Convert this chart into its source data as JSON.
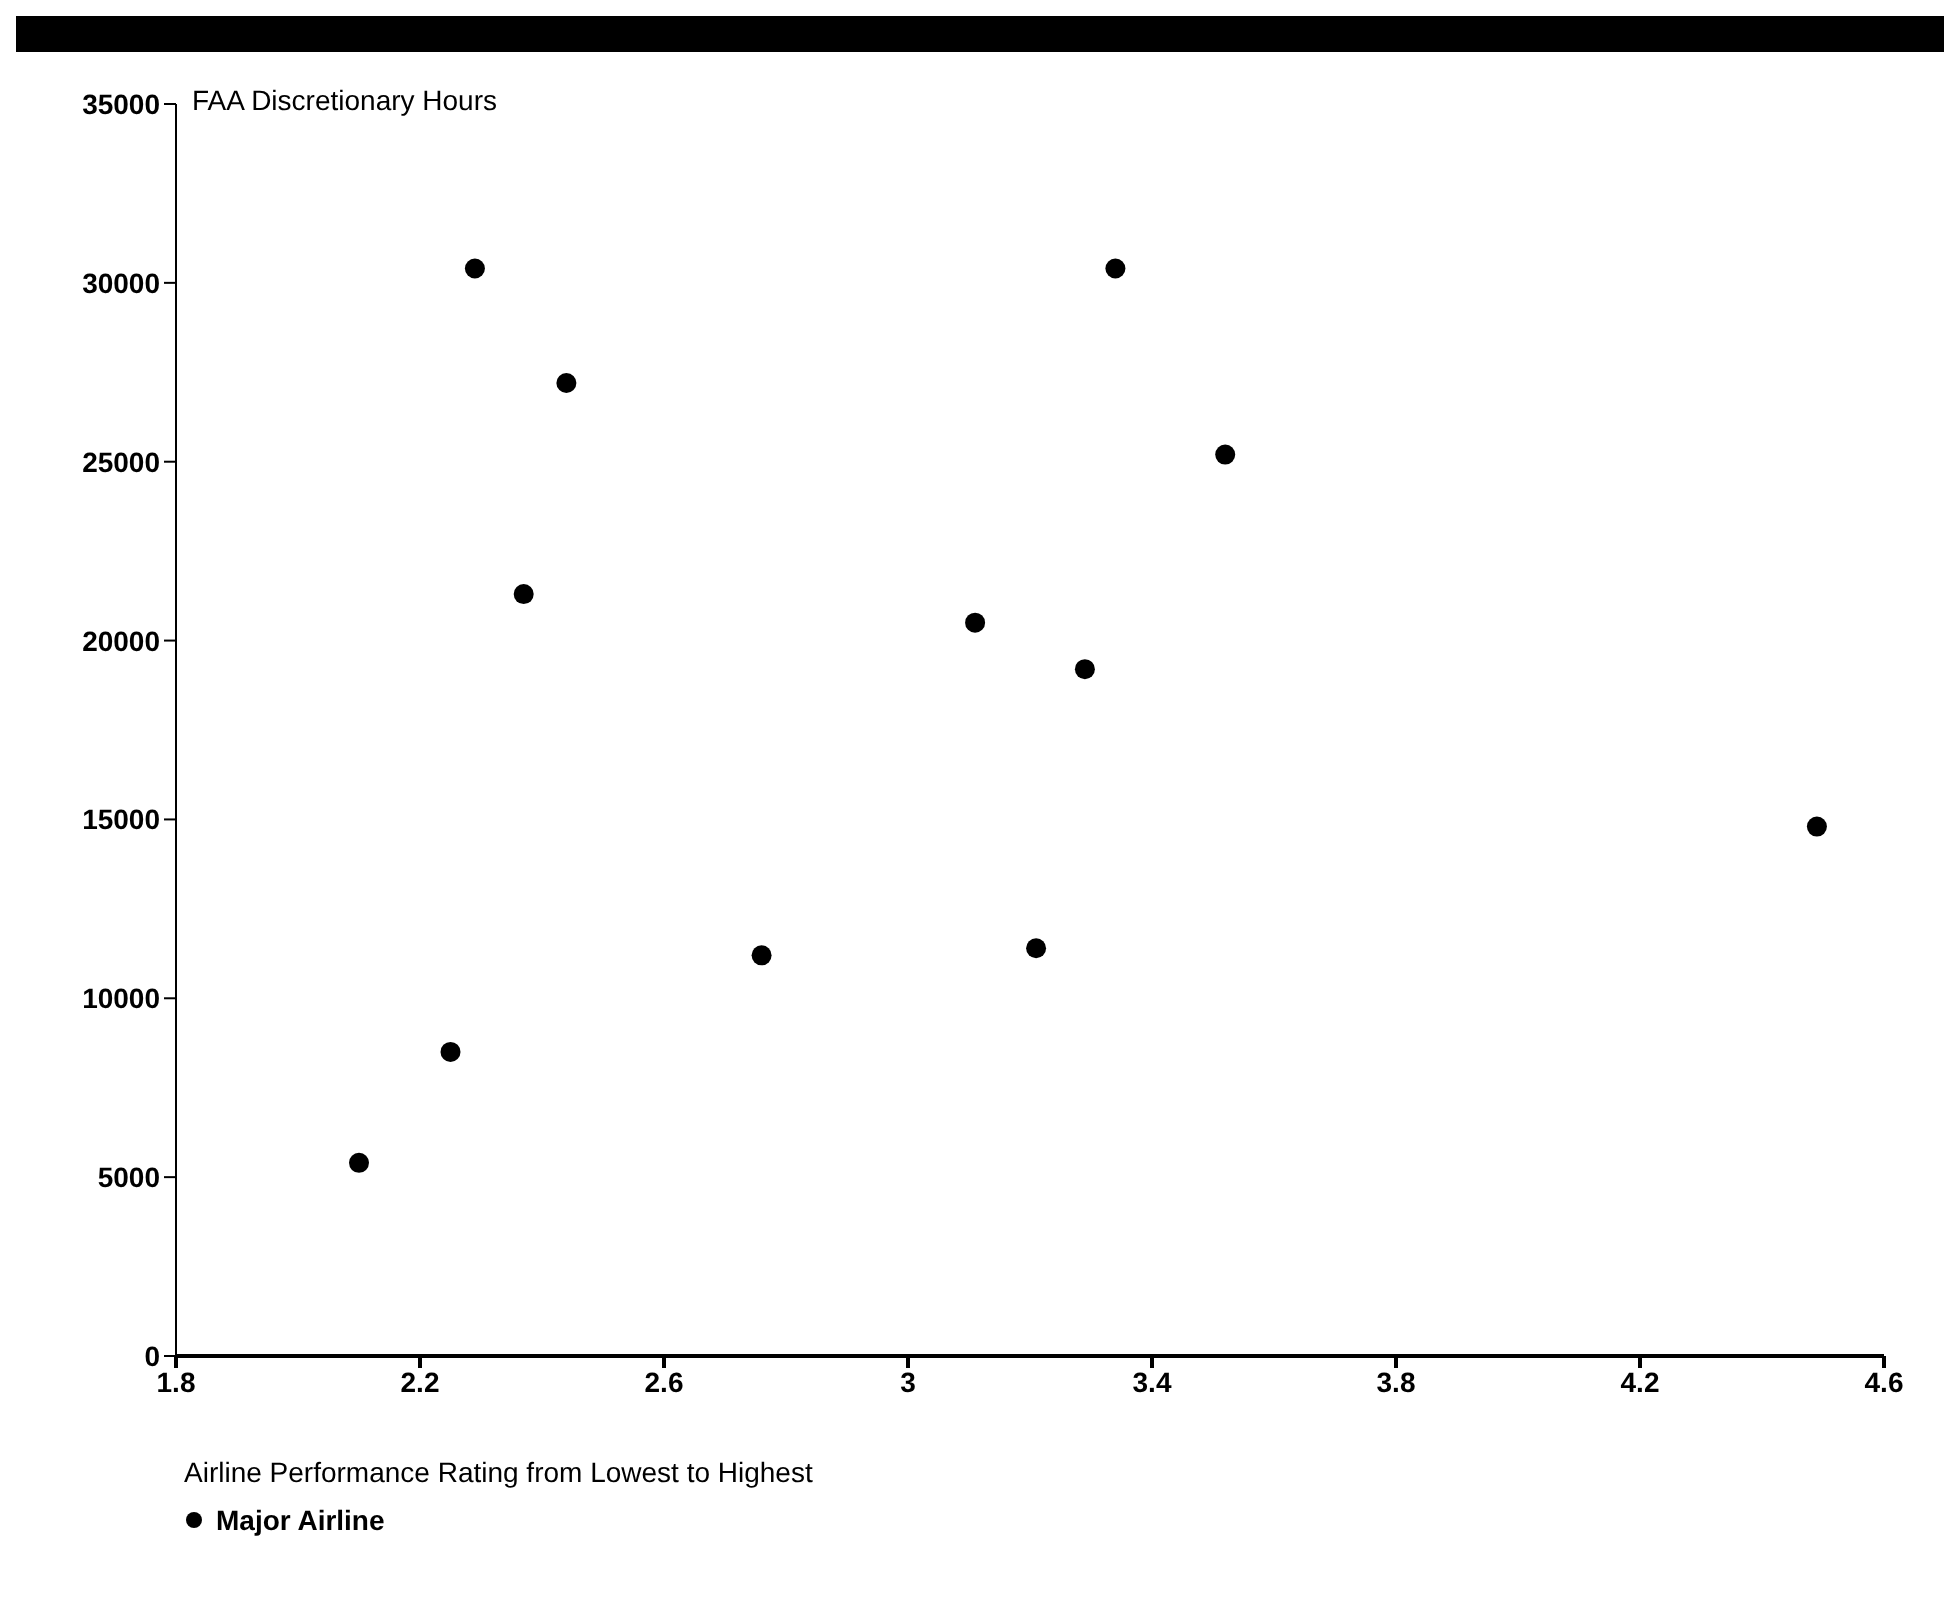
{
  "chart_data": {
    "type": "scatter",
    "ylabel": "FAA Discretionary Hours",
    "xlabel": "Airline Performance Rating from Lowest to Highest",
    "xlim": [
      1.8,
      4.6
    ],
    "xticks": [
      1.8,
      2.2,
      2.6,
      3,
      3.4,
      3.8,
      4.2,
      4.6
    ],
    "ylim": [
      0,
      35000
    ],
    "yticks": [
      0,
      5000,
      10000,
      15000,
      20000,
      25000,
      30000,
      35000
    ],
    "grid": false,
    "legend": "bottom left",
    "marker": "circle",
    "series": [
      {
        "name": "Major Airline",
        "color": "#000000",
        "x": [
          2.1,
          2.25,
          2.29,
          2.37,
          2.44,
          2.76,
          3.11,
          3.21,
          3.29,
          3.34,
          3.52,
          4.49
        ],
        "values": [
          5400,
          8500,
          30400,
          21300,
          27200,
          11200,
          20500,
          11400,
          19200,
          30400,
          25200,
          14800
        ]
      }
    ]
  }
}
